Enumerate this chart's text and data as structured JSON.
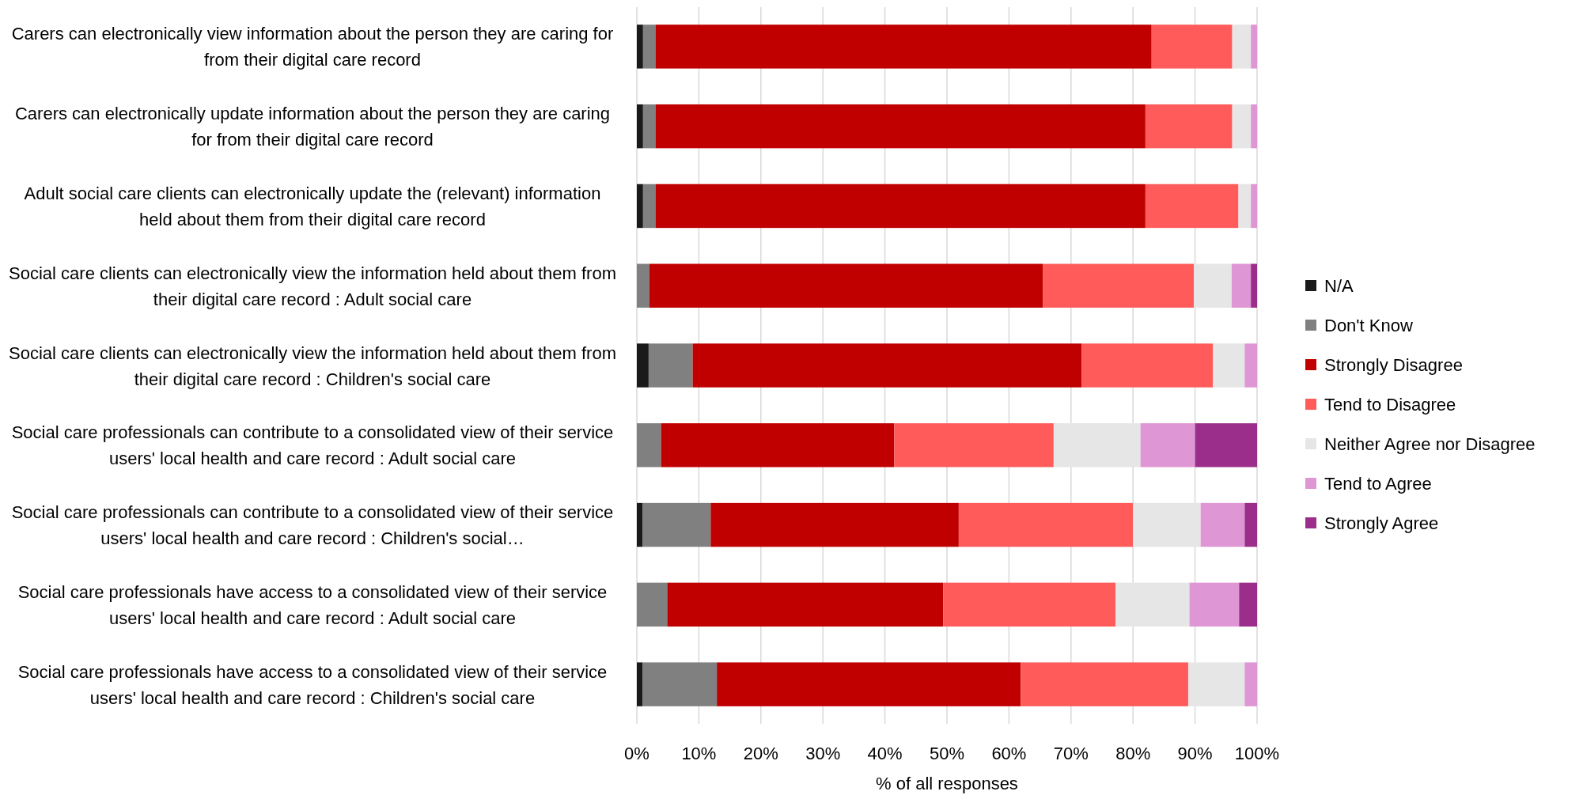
{
  "chart_data": {
    "type": "bar",
    "orientation": "horizontal",
    "stacked": true,
    "xlabel": "% of all responses",
    "categories": [
      "Carers can electronically view information about the person they are caring for from their digital care record",
      "Carers can electronically update information about the person they are caring for from their digital care record",
      "Adult social care clients can electronically update the (relevant) information held about them from their digital care record",
      "Social care clients can electronically view the information held about them from their digital care record : Adult social care",
      "Social care clients can electronically view the information held about them from their digital care record : Children's social care",
      "Social care professionals can contribute to a consolidated view of their service users' local health and care record : Adult social care",
      "Social care professionals can contribute to a consolidated view of their service users' local health and care record : Children's social…",
      "Social care professionals have access to a consolidated view of their service users' local health and care record : Adult social care",
      "Social care professionals have access to a consolidated view of their service users' local health and care record : Children's social care"
    ],
    "series": [
      {
        "name": "N/A",
        "color": "#1a1a1a",
        "values": [
          1,
          1,
          1,
          0,
          1.9,
          0,
          0.9,
          0,
          0.9
        ]
      },
      {
        "name": "Don't Know",
        "color": "#808080",
        "values": [
          2,
          2,
          2,
          2,
          7.1,
          3.9,
          11,
          4.9,
          12
        ]
      },
      {
        "name": "Strongly Disagree",
        "color": "#c00000",
        "values": [
          80,
          79,
          79,
          63.5,
          62.7,
          37.6,
          40,
          44.5,
          49
        ]
      },
      {
        "name": "Tend to Disagree",
        "color": "#ff5b5b",
        "values": [
          13,
          14,
          15,
          24.3,
          21.2,
          25.7,
          28.1,
          27.8,
          27
        ]
      },
      {
        "name": "Neither Agree nor Disagree",
        "color": "#e6e6e6",
        "values": [
          3,
          3,
          2,
          6.1,
          5.1,
          14,
          10.9,
          11.9,
          9.1
        ]
      },
      {
        "name": "Tend to Agree",
        "color": "#df96d5",
        "values": [
          1,
          1,
          1,
          3.1,
          2,
          8.8,
          7.1,
          8,
          2
        ]
      },
      {
        "name": "Strongly Agree",
        "color": "#9a2e8a",
        "values": [
          0,
          0,
          0,
          1,
          0,
          10,
          2,
          2.9,
          0
        ]
      }
    ],
    "xlim": [
      0,
      100
    ],
    "xticks": [
      {
        "value": 0,
        "label": "0%"
      },
      {
        "value": 10,
        "label": "10%"
      },
      {
        "value": 20,
        "label": "20%"
      },
      {
        "value": 30,
        "label": "30%"
      },
      {
        "value": 40,
        "label": "40%"
      },
      {
        "value": 50,
        "label": "50%"
      },
      {
        "value": 60,
        "label": "60%"
      },
      {
        "value": 70,
        "label": "70%"
      },
      {
        "value": 80,
        "label": "80%"
      },
      {
        "value": 90,
        "label": "90%"
      },
      {
        "value": 100,
        "label": "100%"
      }
    ],
    "grid": "x",
    "legend": "right"
  }
}
